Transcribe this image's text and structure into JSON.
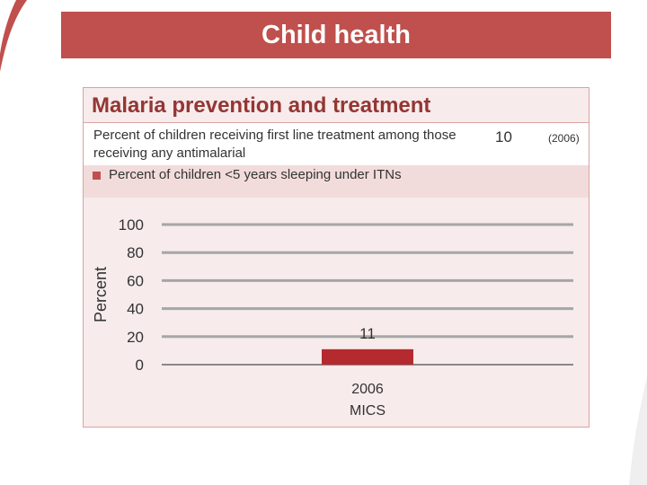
{
  "slide": {
    "title": "Child health"
  },
  "panel": {
    "heading": "Malaria prevention and treatment",
    "indicator": {
      "text": "Percent of children receiving first line treatment among those receiving any antimalarial",
      "value": "10",
      "year": "(2006)"
    },
    "legend_label": "Percent of children <5 years sleeping under ITNs"
  },
  "colors": {
    "accent": "#c0504d",
    "bar": "#b52a2e",
    "heading": "#943634"
  },
  "chart_data": {
    "type": "bar",
    "categories": [
      "2006 MICS"
    ],
    "category_lines": [
      [
        "2006",
        "MICS"
      ]
    ],
    "values": [
      11
    ],
    "data_labels": [
      "11"
    ],
    "ylabel": "Percent",
    "ylim": [
      0,
      100
    ],
    "yticks": [
      "0",
      "20",
      "40",
      "60",
      "80",
      "100"
    ],
    "grid": true
  }
}
